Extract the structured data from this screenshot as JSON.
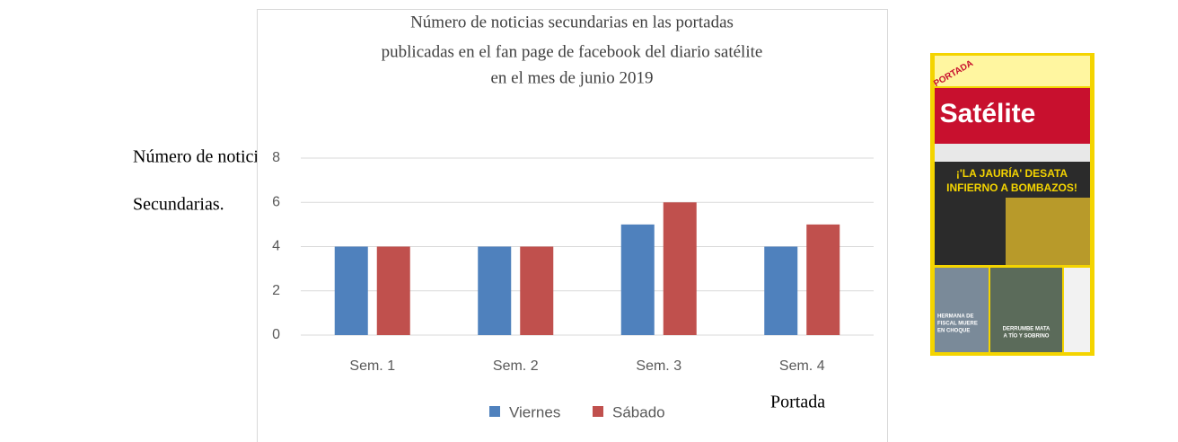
{
  "side_label": [
    "Número de noticias",
    "Secundarias."
  ],
  "chart_data": {
    "type": "bar",
    "title": [
      "Número de noticias secundarias en las portadas",
      "publicadas en el fan page de facebook del diario satélite",
      "en el mes de junio 2019"
    ],
    "categories": [
      "Sem. 1",
      "Sem. 2",
      "Sem. 3",
      "Sem. 4"
    ],
    "series": [
      {
        "name": "Viernes",
        "color": "#4f81bd",
        "values": [
          4,
          4,
          5,
          4
        ]
      },
      {
        "name": "Sábado",
        "color": "#c0504d",
        "values": [
          4,
          4,
          6,
          5
        ]
      }
    ],
    "ylim": [
      0,
      8
    ],
    "yticks": [
      0,
      2,
      4,
      6,
      8
    ],
    "grid": true,
    "legend": "bottom"
  },
  "cover": {
    "badge": "PORTADA",
    "masthead": "Satélite",
    "headline": [
      "¡'LA JAURÍA' DESATA",
      "INFIERNO A BOMBAZOS!"
    ],
    "story1": [
      "HERMANA DE",
      "FISCAL MUERE",
      "EN CHOQUE"
    ],
    "story2": [
      "DERRUMBE MATA",
      "A TÍO Y SOBRINO"
    ],
    "caption": "Portada"
  }
}
